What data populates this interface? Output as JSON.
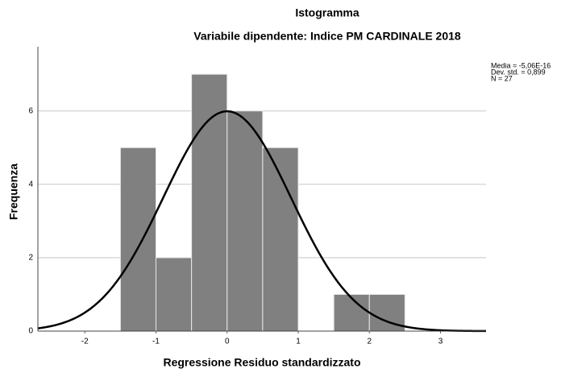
{
  "chart_data": {
    "type": "histogram",
    "title": "Istogramma",
    "subtitle": "Variabile dipendente: Indice PM CARDINALE 2018",
    "x_label": "Regressione Residuo standardizzato",
    "y_label": "Frequenza",
    "bins": [
      -1.5,
      -1,
      -0.5,
      0,
      0.5,
      1,
      1.5,
      2,
      2.5
    ],
    "values": [
      5,
      2,
      7,
      6,
      5,
      0,
      1,
      1
    ],
    "color": "#808080",
    "xlim": [
      -2.66,
      3.64
    ],
    "ylim": [
      0,
      7.75
    ],
    "xticks": [
      -2,
      -1,
      0,
      1,
      2,
      3
    ],
    "yticks": [
      0,
      2,
      4,
      6
    ],
    "grid": true,
    "stats": [
      {
        "value": -5.06e-16,
        "label": "Media = -5,06E-16"
      },
      {
        "value": 0.899,
        "label": "Dev. std. = 0,899"
      },
      {
        "value": 27,
        "label": "N = 27"
      }
    ]
  }
}
